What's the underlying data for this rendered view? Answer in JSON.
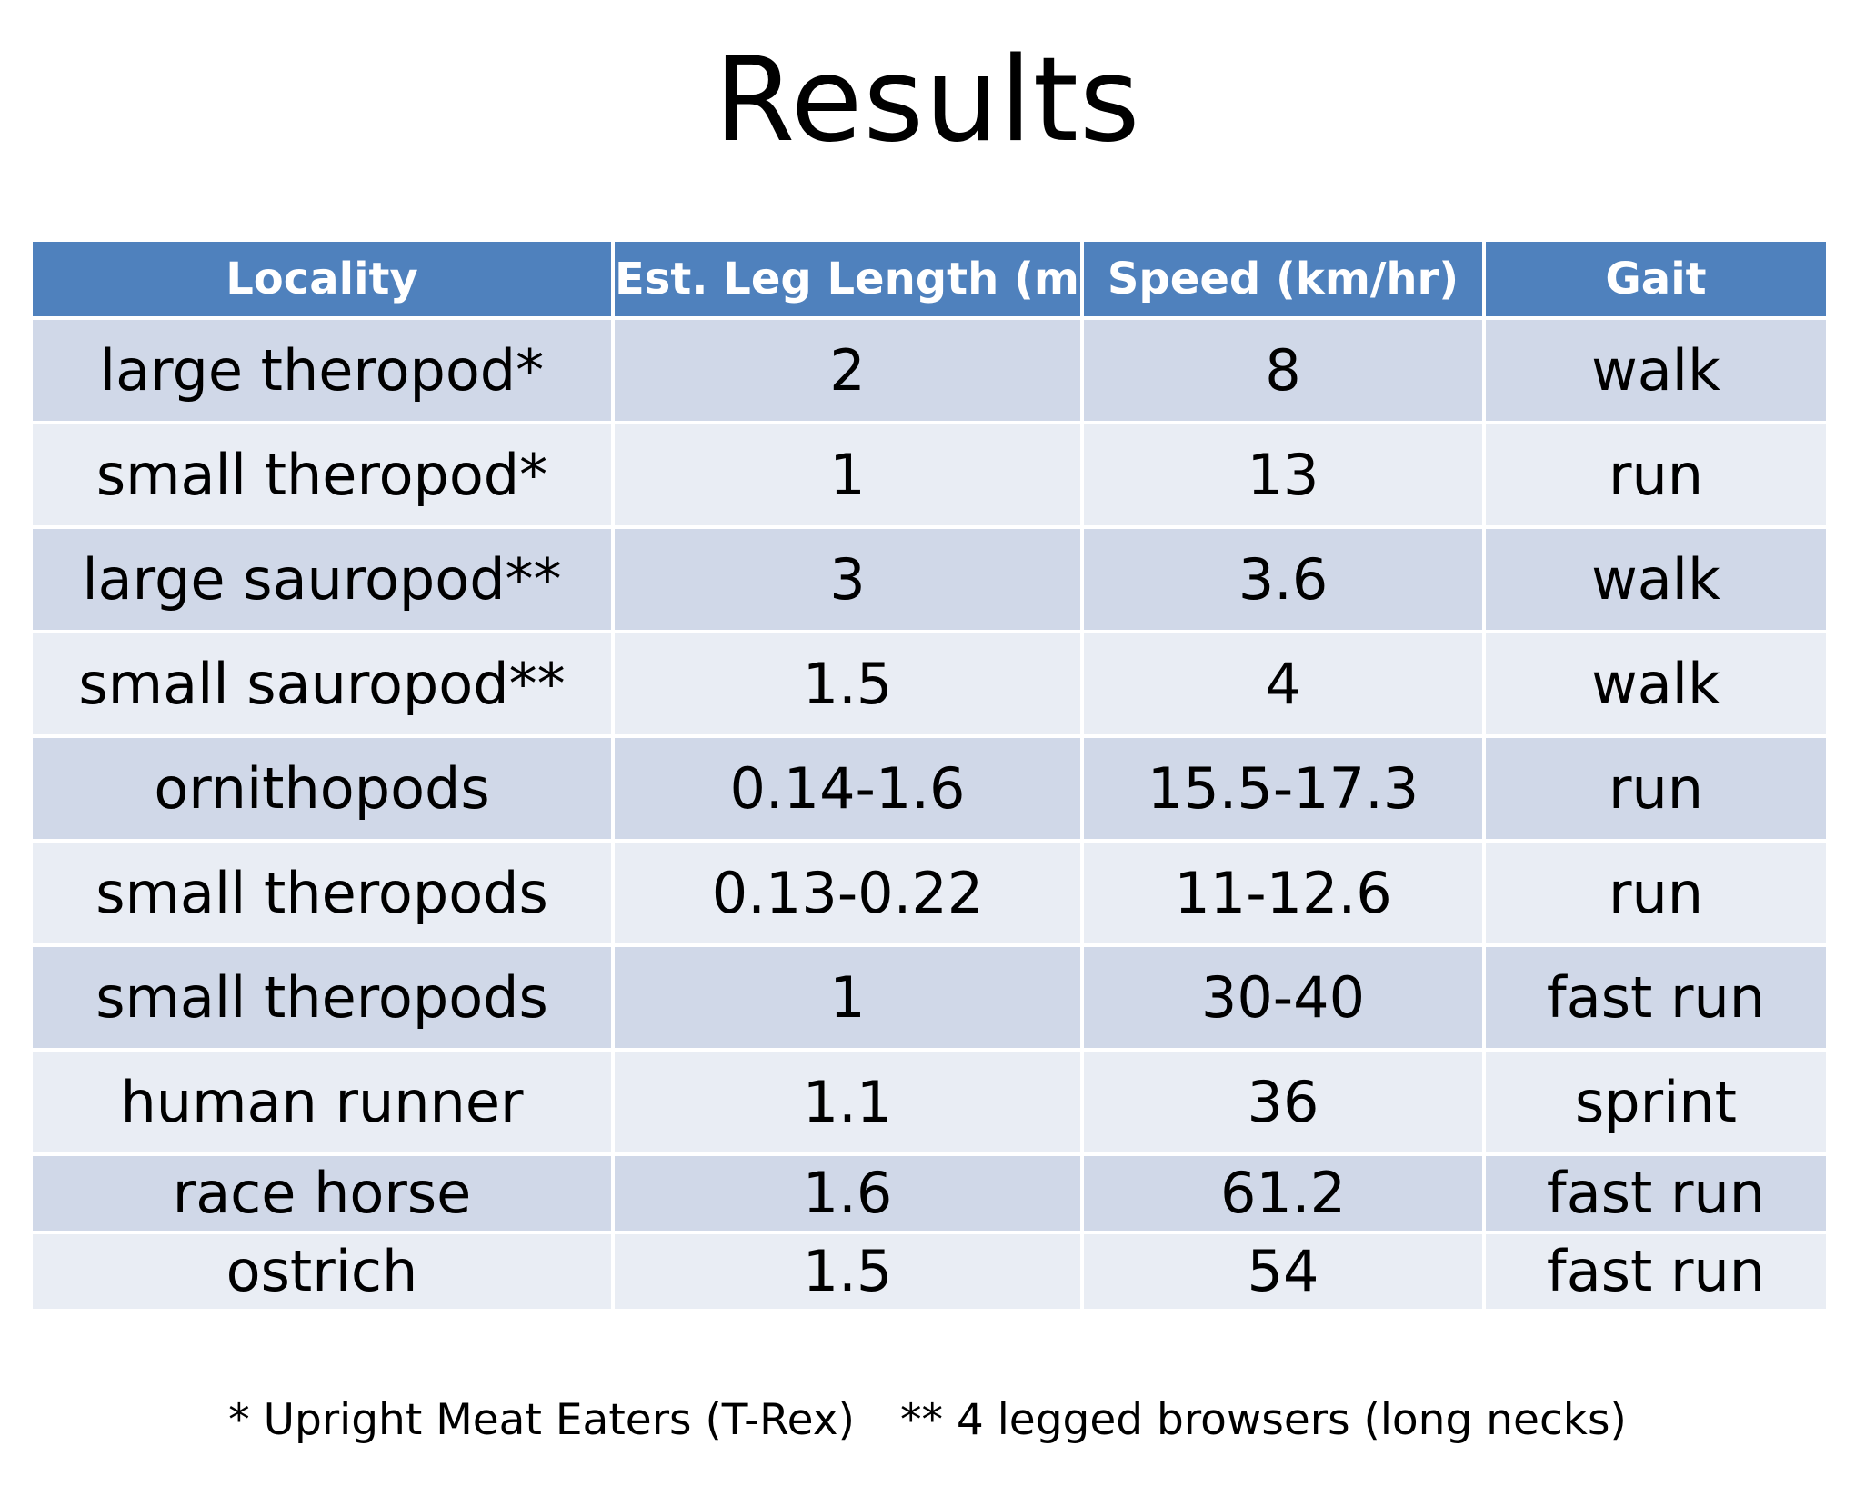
{
  "title": "Results",
  "table": {
    "headers": [
      "Locality",
      "Est. Leg Length (m)",
      "Speed (km/hr)",
      "Gait"
    ],
    "rows": [
      [
        "large theropod*",
        "2",
        "8",
        "walk"
      ],
      [
        "small theropod*",
        "1",
        "13",
        "run"
      ],
      [
        "large sauropod**",
        "3",
        "3.6",
        "walk"
      ],
      [
        "small sauropod**",
        "1.5",
        "4",
        "walk"
      ],
      [
        "ornithopods",
        "0.14-1.6",
        "15.5-17.3",
        "run"
      ],
      [
        "small theropods",
        "0.13-0.22",
        "11-12.6",
        "run"
      ],
      [
        "small theropods",
        "1",
        "30-40",
        "fast run"
      ],
      [
        "human runner",
        "1.1",
        "36",
        "sprint"
      ],
      [
        "race horse",
        "1.6",
        "61.2",
        "fast run"
      ],
      [
        "ostrich",
        "1.5",
        "54",
        "fast run"
      ]
    ]
  },
  "footnotes": {
    "single": "* Upright Meat Eaters (T-Rex)",
    "double": "** 4 legged browsers (long necks)"
  },
  "colors": {
    "header_bg": "#4f81bd",
    "row_dark": "#d0d8e8",
    "row_light": "#e9edf4"
  }
}
